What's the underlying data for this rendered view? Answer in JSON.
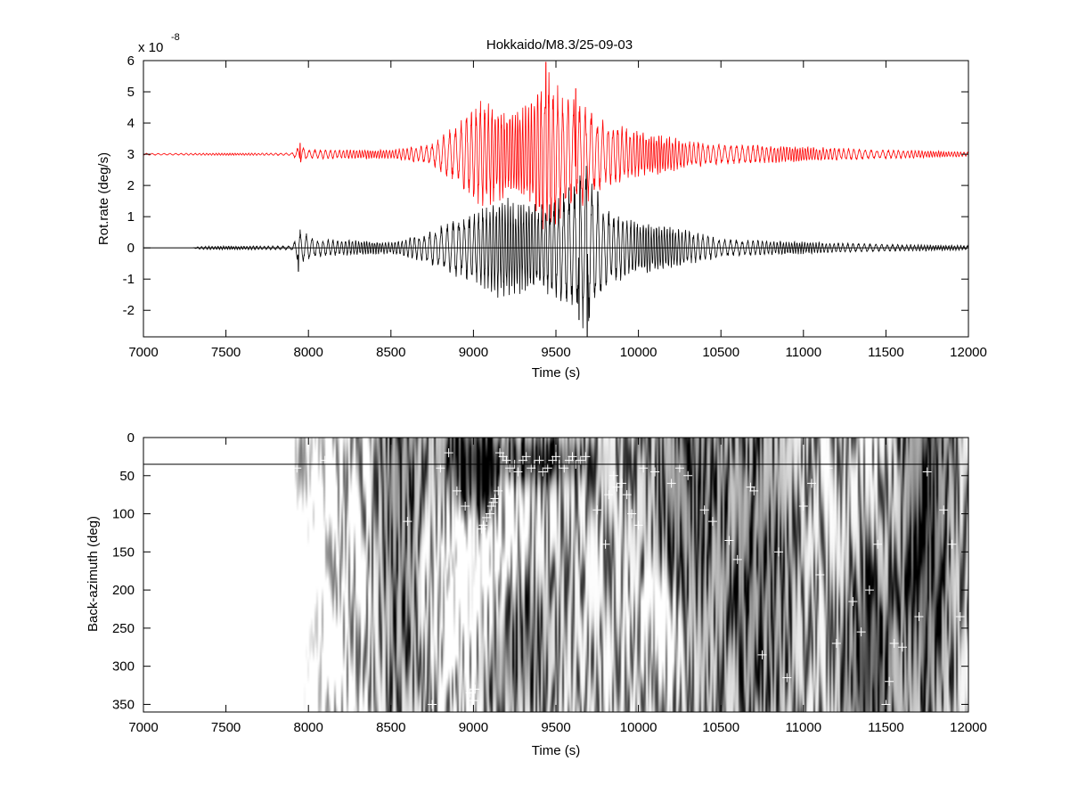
{
  "figure": {
    "title": "Hokkaido/M8.3/25-09-03"
  },
  "chart_data": [
    {
      "type": "line",
      "title": "Hokkaido/M8.3/25-09-03",
      "xlabel": "Time (s)",
      "ylabel": "Rot.rate (deg/s)",
      "y_exponent_label": "x 10",
      "y_exponent_power": "-8",
      "xlim": [
        7000,
        12000
      ],
      "ylim": [
        -2.85,
        6
      ],
      "x_ticks": [
        "7000",
        "7500",
        "8000",
        "8500",
        "9000",
        "9500",
        "10000",
        "10500",
        "11000",
        "11500",
        "12000"
      ],
      "y_ticks": [
        "-2",
        "-1",
        "0",
        "1",
        "2",
        "3",
        "4",
        "5",
        "6"
      ],
      "reference_line_y": 0,
      "series": [
        {
          "color": "#ff0000",
          "offset": 3,
          "envelope": [
            [
              7000,
              0.03
            ],
            [
              7900,
              0.04
            ],
            [
              7950,
              0.3
            ],
            [
              8000,
              0.15
            ],
            [
              8500,
              0.15
            ],
            [
              8750,
              0.35
            ],
            [
              8900,
              1.0
            ],
            [
              9050,
              1.8
            ],
            [
              9200,
              1.4
            ],
            [
              9350,
              1.7
            ],
            [
              9450,
              2.9
            ],
            [
              9550,
              2.0
            ],
            [
              9650,
              1.8
            ],
            [
              9800,
              1.1
            ],
            [
              10000,
              0.8
            ],
            [
              10300,
              0.45
            ],
            [
              10500,
              0.35
            ],
            [
              11000,
              0.25
            ],
            [
              11500,
              0.15
            ],
            [
              12000,
              0.08
            ]
          ],
          "spikes": [
            [
              7950,
              0.35
            ],
            [
              9440,
              2.95
            ],
            [
              9620,
              2.1
            ]
          ]
        },
        {
          "color": "#000000",
          "offset": 0,
          "envelope": [
            [
              7300,
              0.0
            ],
            [
              7330,
              0.05
            ],
            [
              7400,
              0.06
            ],
            [
              7900,
              0.07
            ],
            [
              7950,
              0.6
            ],
            [
              8050,
              0.3
            ],
            [
              8500,
              0.2
            ],
            [
              8700,
              0.45
            ],
            [
              8900,
              1.0
            ],
            [
              9050,
              1.3
            ],
            [
              9150,
              1.7
            ],
            [
              9300,
              1.5
            ],
            [
              9450,
              1.5
            ],
            [
              9600,
              2.2
            ],
            [
              9680,
              2.8
            ],
            [
              9800,
              1.3
            ],
            [
              10000,
              0.9
            ],
            [
              10300,
              0.6
            ],
            [
              10500,
              0.3
            ],
            [
              11000,
              0.2
            ],
            [
              11500,
              0.12
            ],
            [
              12000,
              0.08
            ]
          ],
          "spikes": [
            [
              7940,
              -0.75
            ],
            [
              9640,
              -2.3
            ],
            [
              9690,
              -2.85
            ]
          ]
        }
      ]
    },
    {
      "type": "heatmap",
      "xlabel": "Time (s)",
      "ylabel": "Back-azimuth (deg)",
      "xlim": [
        7000,
        12000
      ],
      "ylim": [
        360,
        0
      ],
      "x_ticks": [
        "7000",
        "7500",
        "8000",
        "8500",
        "9000",
        "9500",
        "10000",
        "10500",
        "11000",
        "11500",
        "12000"
      ],
      "y_ticks": [
        "0",
        "50",
        "100",
        "150",
        "200",
        "250",
        "300",
        "350"
      ],
      "colormap": [
        "#000000",
        "#ffffff"
      ],
      "reference_line_y": 35,
      "dark_regions": [
        {
          "t": 7950,
          "baz": 35,
          "w": 50,
          "h": 60,
          "s": 0.8
        },
        {
          "t": 8550,
          "baz": 100,
          "w": 150,
          "h": 250,
          "s": 0.5
        },
        {
          "t": 8950,
          "baz": 40,
          "w": 150,
          "h": 80,
          "s": 0.95
        },
        {
          "t": 9080,
          "baz": 70,
          "w": 60,
          "h": 60,
          "s": 0.9
        },
        {
          "t": 9150,
          "baz": 300,
          "w": 250,
          "h": 60,
          "s": 0.6
        },
        {
          "t": 9400,
          "baz": 30,
          "w": 300,
          "h": 30,
          "s": 0.85
        },
        {
          "t": 9150,
          "baz": 230,
          "w": 300,
          "h": 60,
          "s": 0.5
        },
        {
          "t": 10300,
          "baz": 110,
          "w": 250,
          "h": 200,
          "s": 0.5
        },
        {
          "t": 10750,
          "baz": 180,
          "w": 200,
          "h": 220,
          "s": 0.5
        },
        {
          "t": 11400,
          "baz": 300,
          "w": 150,
          "h": 120,
          "s": 0.8
        },
        {
          "t": 11750,
          "baz": 120,
          "w": 150,
          "h": 250,
          "s": 0.7
        }
      ],
      "light_regions": [
        {
          "t": 9000,
          "baz": 200,
          "w": 220,
          "h": 120,
          "s": 0.9
        },
        {
          "t": 7500,
          "baz": 180,
          "w": 600,
          "h": 400,
          "s": 0.75
        },
        {
          "t": 10150,
          "baz": 250,
          "w": 150,
          "h": 80,
          "s": 0.4
        }
      ],
      "markers": [
        [
          7930,
          40
        ],
        [
          8100,
          30
        ],
        [
          8600,
          110
        ],
        [
          8750,
          350
        ],
        [
          8800,
          40
        ],
        [
          8850,
          20
        ],
        [
          8900,
          70
        ],
        [
          8950,
          90
        ],
        [
          8980,
          335
        ],
        [
          9000,
          345
        ],
        [
          9010,
          330
        ],
        [
          9050,
          120
        ],
        [
          9060,
          115
        ],
        [
          9080,
          105
        ],
        [
          9100,
          100
        ],
        [
          9110,
          90
        ],
        [
          9120,
          85
        ],
        [
          9130,
          80
        ],
        [
          9150,
          70
        ],
        [
          9160,
          20
        ],
        [
          9180,
          25
        ],
        [
          9200,
          30
        ],
        [
          9220,
          40
        ],
        [
          9250,
          35
        ],
        [
          9270,
          45
        ],
        [
          9300,
          30
        ],
        [
          9320,
          25
        ],
        [
          9350,
          40
        ],
        [
          9370,
          35
        ],
        [
          9400,
          30
        ],
        [
          9420,
          45
        ],
        [
          9450,
          40
        ],
        [
          9480,
          30
        ],
        [
          9500,
          25
        ],
        [
          9520,
          35
        ],
        [
          9550,
          40
        ],
        [
          9580,
          30
        ],
        [
          9600,
          25
        ],
        [
          9620,
          35
        ],
        [
          9650,
          30
        ],
        [
          9680,
          25
        ],
        [
          9750,
          95
        ],
        [
          9800,
          140
        ],
        [
          9820,
          75
        ],
        [
          9850,
          50
        ],
        [
          9870,
          65
        ],
        [
          9900,
          60
        ],
        [
          9930,
          75
        ],
        [
          9960,
          100
        ],
        [
          10000,
          115
        ],
        [
          10030,
          40
        ],
        [
          10100,
          45
        ],
        [
          10200,
          60
        ],
        [
          10250,
          40
        ],
        [
          10300,
          50
        ],
        [
          10400,
          95
        ],
        [
          10450,
          110
        ],
        [
          10550,
          135
        ],
        [
          10600,
          160
        ],
        [
          10680,
          65
        ],
        [
          10700,
          70
        ],
        [
          10750,
          285
        ],
        [
          10850,
          150
        ],
        [
          10900,
          315
        ],
        [
          11000,
          90
        ],
        [
          11050,
          60
        ],
        [
          11100,
          180
        ],
        [
          11150,
          40
        ],
        [
          11200,
          270
        ],
        [
          11300,
          215
        ],
        [
          11350,
          255
        ],
        [
          11400,
          200
        ],
        [
          11450,
          140
        ],
        [
          11500,
          350
        ],
        [
          11520,
          320
        ],
        [
          11550,
          270
        ],
        [
          11600,
          275
        ],
        [
          11700,
          235
        ],
        [
          11750,
          45
        ],
        [
          11850,
          95
        ],
        [
          11900,
          140
        ],
        [
          11950,
          235
        ]
      ]
    }
  ]
}
